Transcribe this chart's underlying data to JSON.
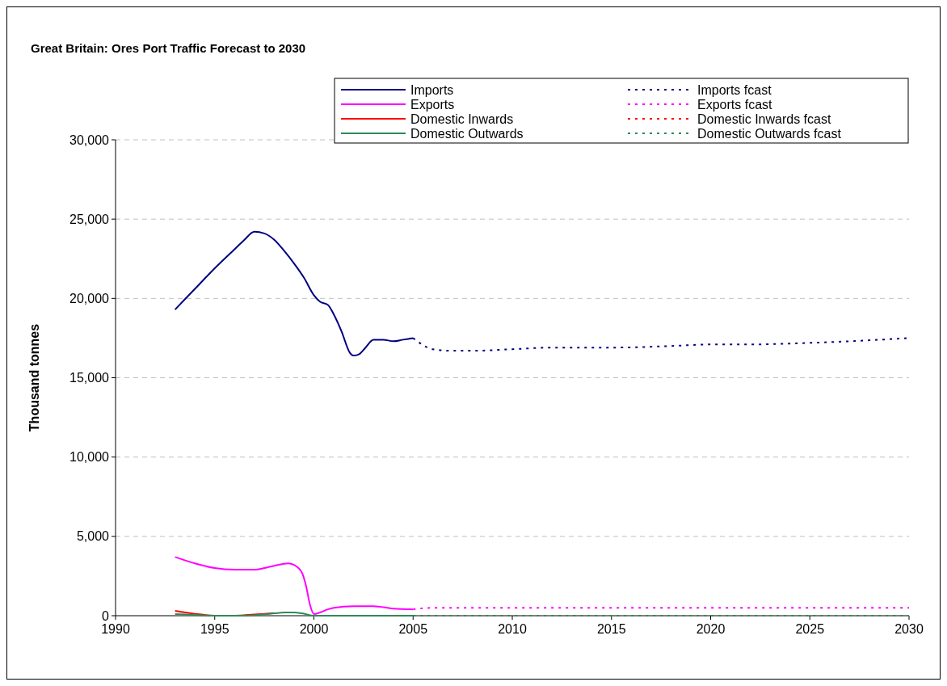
{
  "chart_data": {
    "type": "line",
    "title": "Great Britain: Ores Port Traffic Forecast to 2030",
    "ylabel": "Thousand tonnes",
    "xlim": [
      1990,
      2030
    ],
    "xticks": [
      1990,
      1995,
      2000,
      2005,
      2010,
      2015,
      2020,
      2025,
      2030
    ],
    "ylim": [
      0,
      30000
    ],
    "yticks": [
      0,
      {
        "value": 5000,
        "label": "5,000"
      },
      {
        "value": 10000,
        "label": "10,000"
      },
      {
        "value": 15000,
        "label": "15,000"
      },
      {
        "value": 20000,
        "label": "20,000"
      },
      {
        "value": 25000,
        "label": "25,000"
      },
      {
        "value": 30000,
        "label": "30,000"
      }
    ],
    "grid": "y",
    "legend": "top right",
    "marker": "none",
    "series": [
      {
        "name": "Imports",
        "color": "#000080",
        "line_style": "solid",
        "x": [
          1993,
          1994,
          1995,
          1996,
          1996.5,
          1997,
          1997.5,
          1998,
          1998.5,
          1999,
          1999.5,
          2000,
          2000.3,
          2000.7,
          2001,
          2001.4,
          2001.8,
          2002,
          2002.3,
          2002.6,
          2003,
          2003.5,
          2004,
          2004.5,
          2005
        ],
        "values": [
          19300,
          20600,
          21900,
          23100,
          23700,
          24200,
          24100,
          23700,
          23000,
          22200,
          21300,
          20200,
          19800,
          19600,
          19000,
          17900,
          16600,
          16400,
          16500,
          16900,
          17400,
          17400,
          17300,
          17400,
          17500
        ]
      },
      {
        "name": "Exports",
        "color": "#ff00ff",
        "line_style": "solid",
        "x": [
          1993,
          1994,
          1995,
          1996,
          1997,
          1997.5,
          1998,
          1998.7,
          1999,
          1999.4,
          1999.6,
          1999.8,
          2000,
          2000.3,
          2000.7,
          2001,
          2002,
          2003,
          2004,
          2005
        ],
        "values": [
          3700,
          3300,
          3000,
          2900,
          2900,
          3000,
          3150,
          3300,
          3200,
          2700,
          1900,
          700,
          100,
          200,
          400,
          500,
          600,
          600,
          450,
          400
        ]
      },
      {
        "name": "Domestic Inwards",
        "color": "#ff0000",
        "line_style": "solid",
        "x": [
          1993,
          1994,
          1995,
          1996,
          1997,
          1998
        ],
        "values": [
          300,
          120,
          0,
          0,
          80,
          160
        ]
      },
      {
        "name": "Domestic Outwards",
        "color": "#2e8b57",
        "line_style": "solid",
        "x": [
          1993,
          1994,
          1995,
          1996,
          1997,
          1998,
          1998.5,
          1999,
          1999.4,
          2000,
          2001,
          2002,
          2003,
          2004,
          2005
        ],
        "values": [
          100,
          50,
          0,
          0,
          30,
          150,
          200,
          200,
          150,
          0,
          0,
          0,
          0,
          0,
          0
        ]
      },
      {
        "name": "Imports fcast",
        "color": "#000080",
        "line_style": "dotted",
        "x": [
          2005,
          2006,
          2007,
          2008,
          2010,
          2012,
          2015,
          2018,
          2020,
          2022,
          2025,
          2027,
          2030
        ],
        "values": [
          17500,
          16800,
          16700,
          16700,
          16800,
          16900,
          16900,
          17000,
          17100,
          17100,
          17200,
          17300,
          17500
        ]
      },
      {
        "name": "Exports fcast",
        "color": "#ff00ff",
        "line_style": "dotted",
        "x": [
          2005,
          2006,
          2008,
          2010,
          2015,
          2020,
          2025,
          2030
        ],
        "values": [
          400,
          500,
          500,
          500,
          500,
          500,
          500,
          500
        ]
      },
      {
        "name": "Domestic Inwards fcast",
        "color": "#ff0000",
        "line_style": "dotted"
      },
      {
        "name": "Domestic Outwards fcast",
        "color": "#2e8b57",
        "line_style": "dotted",
        "x": [
          2005,
          2010,
          2015,
          2020,
          2025,
          2030
        ],
        "values": [
          0,
          0,
          0,
          0,
          0,
          0
        ]
      }
    ]
  }
}
